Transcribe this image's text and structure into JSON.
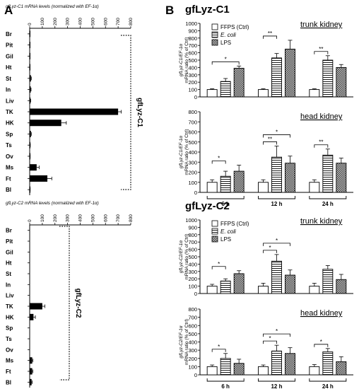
{
  "panel_a_label": "A",
  "panel_b_label": "B",
  "chart_data": [
    {
      "id": "A1",
      "type": "bar",
      "orientation": "horizontal",
      "title": "gfLyz-C1 mRNA levels (normalized with EF-1α)",
      "gene_label": "gfLyz-C1",
      "categories": [
        "Br",
        "Pit",
        "Gil",
        "Ht",
        "St",
        "In",
        "Liv",
        "TK",
        "HK",
        "Sp",
        "Ts",
        "Ov",
        "Ms",
        "Ft",
        "Bl"
      ],
      "values": [
        2,
        2,
        2,
        2,
        10,
        8,
        6,
        700,
        250,
        10,
        4,
        3,
        55,
        140,
        3
      ],
      "errors": [
        0,
        0,
        0,
        0,
        3,
        3,
        2,
        25,
        40,
        3,
        1,
        1,
        20,
        35,
        1
      ],
      "xlim": [
        0,
        800
      ],
      "ticks": [
        "0",
        "100",
        "200",
        "300",
        "400",
        "500",
        "600",
        "700",
        "800"
      ]
    },
    {
      "id": "A2",
      "type": "bar",
      "orientation": "horizontal",
      "title": "gfLyz-C2 mRNA levels (normalized with EF-1α)",
      "gene_label": "gfLyz-C2",
      "categories": [
        "Br",
        "Pit",
        "Gil",
        "Ht",
        "St",
        "In",
        "Liv",
        "TK",
        "HK",
        "Sp",
        "Ts",
        "Ov",
        "Ms",
        "Ft",
        "Bl"
      ],
      "values": [
        0,
        0,
        0,
        0,
        0,
        0,
        0,
        100,
        30,
        0,
        0,
        0,
        20,
        20,
        15
      ],
      "errors": [
        0,
        0,
        0,
        0,
        0,
        0,
        0,
        20,
        15,
        0,
        0,
        0,
        5,
        5,
        5
      ],
      "xlim": [
        0,
        800
      ],
      "ticks": [
        "0",
        "100",
        "200",
        "300",
        "400",
        "500",
        "600",
        "700",
        "800"
      ]
    },
    {
      "id": "B1",
      "type": "bar",
      "gene_title": "gfLyz-C1",
      "tissue": "trunk kidney",
      "ylabel": "gfLyz-C1/EF-1α mRNA ratio (% of Ctrl)",
      "ylim": [
        0,
        1000
      ],
      "yticks": [
        "0",
        "100",
        "200",
        "300",
        "400",
        "500",
        "600",
        "700",
        "800",
        "900",
        "1000"
      ],
      "categories": [
        "6 h",
        "12 h",
        "24 h"
      ],
      "series": [
        {
          "name": "FFPS (Ctrl)",
          "values": [
            100,
            100,
            100
          ],
          "errors": [
            10,
            10,
            10
          ]
        },
        {
          "name": "E. coli",
          "values": [
            210,
            530,
            500
          ],
          "errors": [
            40,
            60,
            60
          ]
        },
        {
          "name": "LPS",
          "values": [
            390,
            650,
            400
          ],
          "errors": [
            30,
            120,
            40
          ]
        }
      ],
      "annotations": [
        "*",
        "**",
        "**",
        "**",
        "**",
        "**"
      ]
    },
    {
      "id": "B2",
      "type": "bar",
      "tissue": "head kidney",
      "ylabel": "gfLyz-C1/EF-1α mRNA ratio (% of Ctrl)",
      "ylim": [
        0,
        800
      ],
      "yticks": [
        "0",
        "100",
        "200",
        "300",
        "400",
        "500",
        "600",
        "700",
        "800"
      ],
      "categories": [
        "6 h",
        "12 h",
        "24 h"
      ],
      "series": [
        {
          "name": "FFPS (Ctrl)",
          "values": [
            100,
            100,
            100
          ],
          "errors": [
            25,
            25,
            25
          ]
        },
        {
          "name": "E. coli",
          "values": [
            160,
            350,
            370
          ],
          "errors": [
            50,
            110,
            60
          ]
        },
        {
          "name": "LPS",
          "values": [
            210,
            290,
            290
          ],
          "errors": [
            60,
            70,
            50
          ]
        }
      ],
      "annotations": [
        "*",
        "**",
        "*",
        "**"
      ]
    },
    {
      "id": "B3",
      "type": "bar",
      "gene_title": "gfLyz-C2",
      "tissue": "trunk kidney",
      "ylabel": "gfLyz-C2/EF-1α mRNA ratio (% of Ctrl)",
      "ylim": [
        0,
        1000
      ],
      "yticks": [
        "0",
        "100",
        "200",
        "300",
        "400",
        "500",
        "600",
        "700",
        "800",
        "900",
        "1000"
      ],
      "categories": [
        "6 h",
        "12 h",
        "24 h"
      ],
      "series": [
        {
          "name": "FFPS (Ctrl)",
          "values": [
            100,
            100,
            100
          ],
          "errors": [
            25,
            40,
            40
          ]
        },
        {
          "name": "E. coli",
          "values": [
            170,
            440,
            330
          ],
          "errors": [
            30,
            90,
            50
          ]
        },
        {
          "name": "LPS",
          "values": [
            270,
            250,
            190
          ],
          "errors": [
            40,
            70,
            70
          ]
        }
      ],
      "annotations": [
        "*",
        "*",
        "*"
      ]
    },
    {
      "id": "B4",
      "type": "bar",
      "tissue": "head kidney",
      "ylabel": "gfLyz-C2/EF-1α mRNA ratio (% of Ctrl)",
      "ylim": [
        0,
        800
      ],
      "yticks": [
        "0",
        "100",
        "200",
        "300",
        "400",
        "500",
        "600",
        "700",
        "800"
      ],
      "categories": [
        "6 h",
        "12 h",
        "24 h"
      ],
      "series": [
        {
          "name": "FFPS (Ctrl)",
          "values": [
            100,
            100,
            100
          ],
          "errors": [
            20,
            20,
            25
          ]
        },
        {
          "name": "E. coli",
          "values": [
            200,
            290,
            280
          ],
          "errors": [
            60,
            70,
            40
          ]
        },
        {
          "name": "LPS",
          "values": [
            140,
            260,
            160
          ],
          "errors": [
            50,
            70,
            60
          ]
        }
      ],
      "annotations": [
        "*",
        "*",
        "*",
        "*"
      ]
    }
  ]
}
